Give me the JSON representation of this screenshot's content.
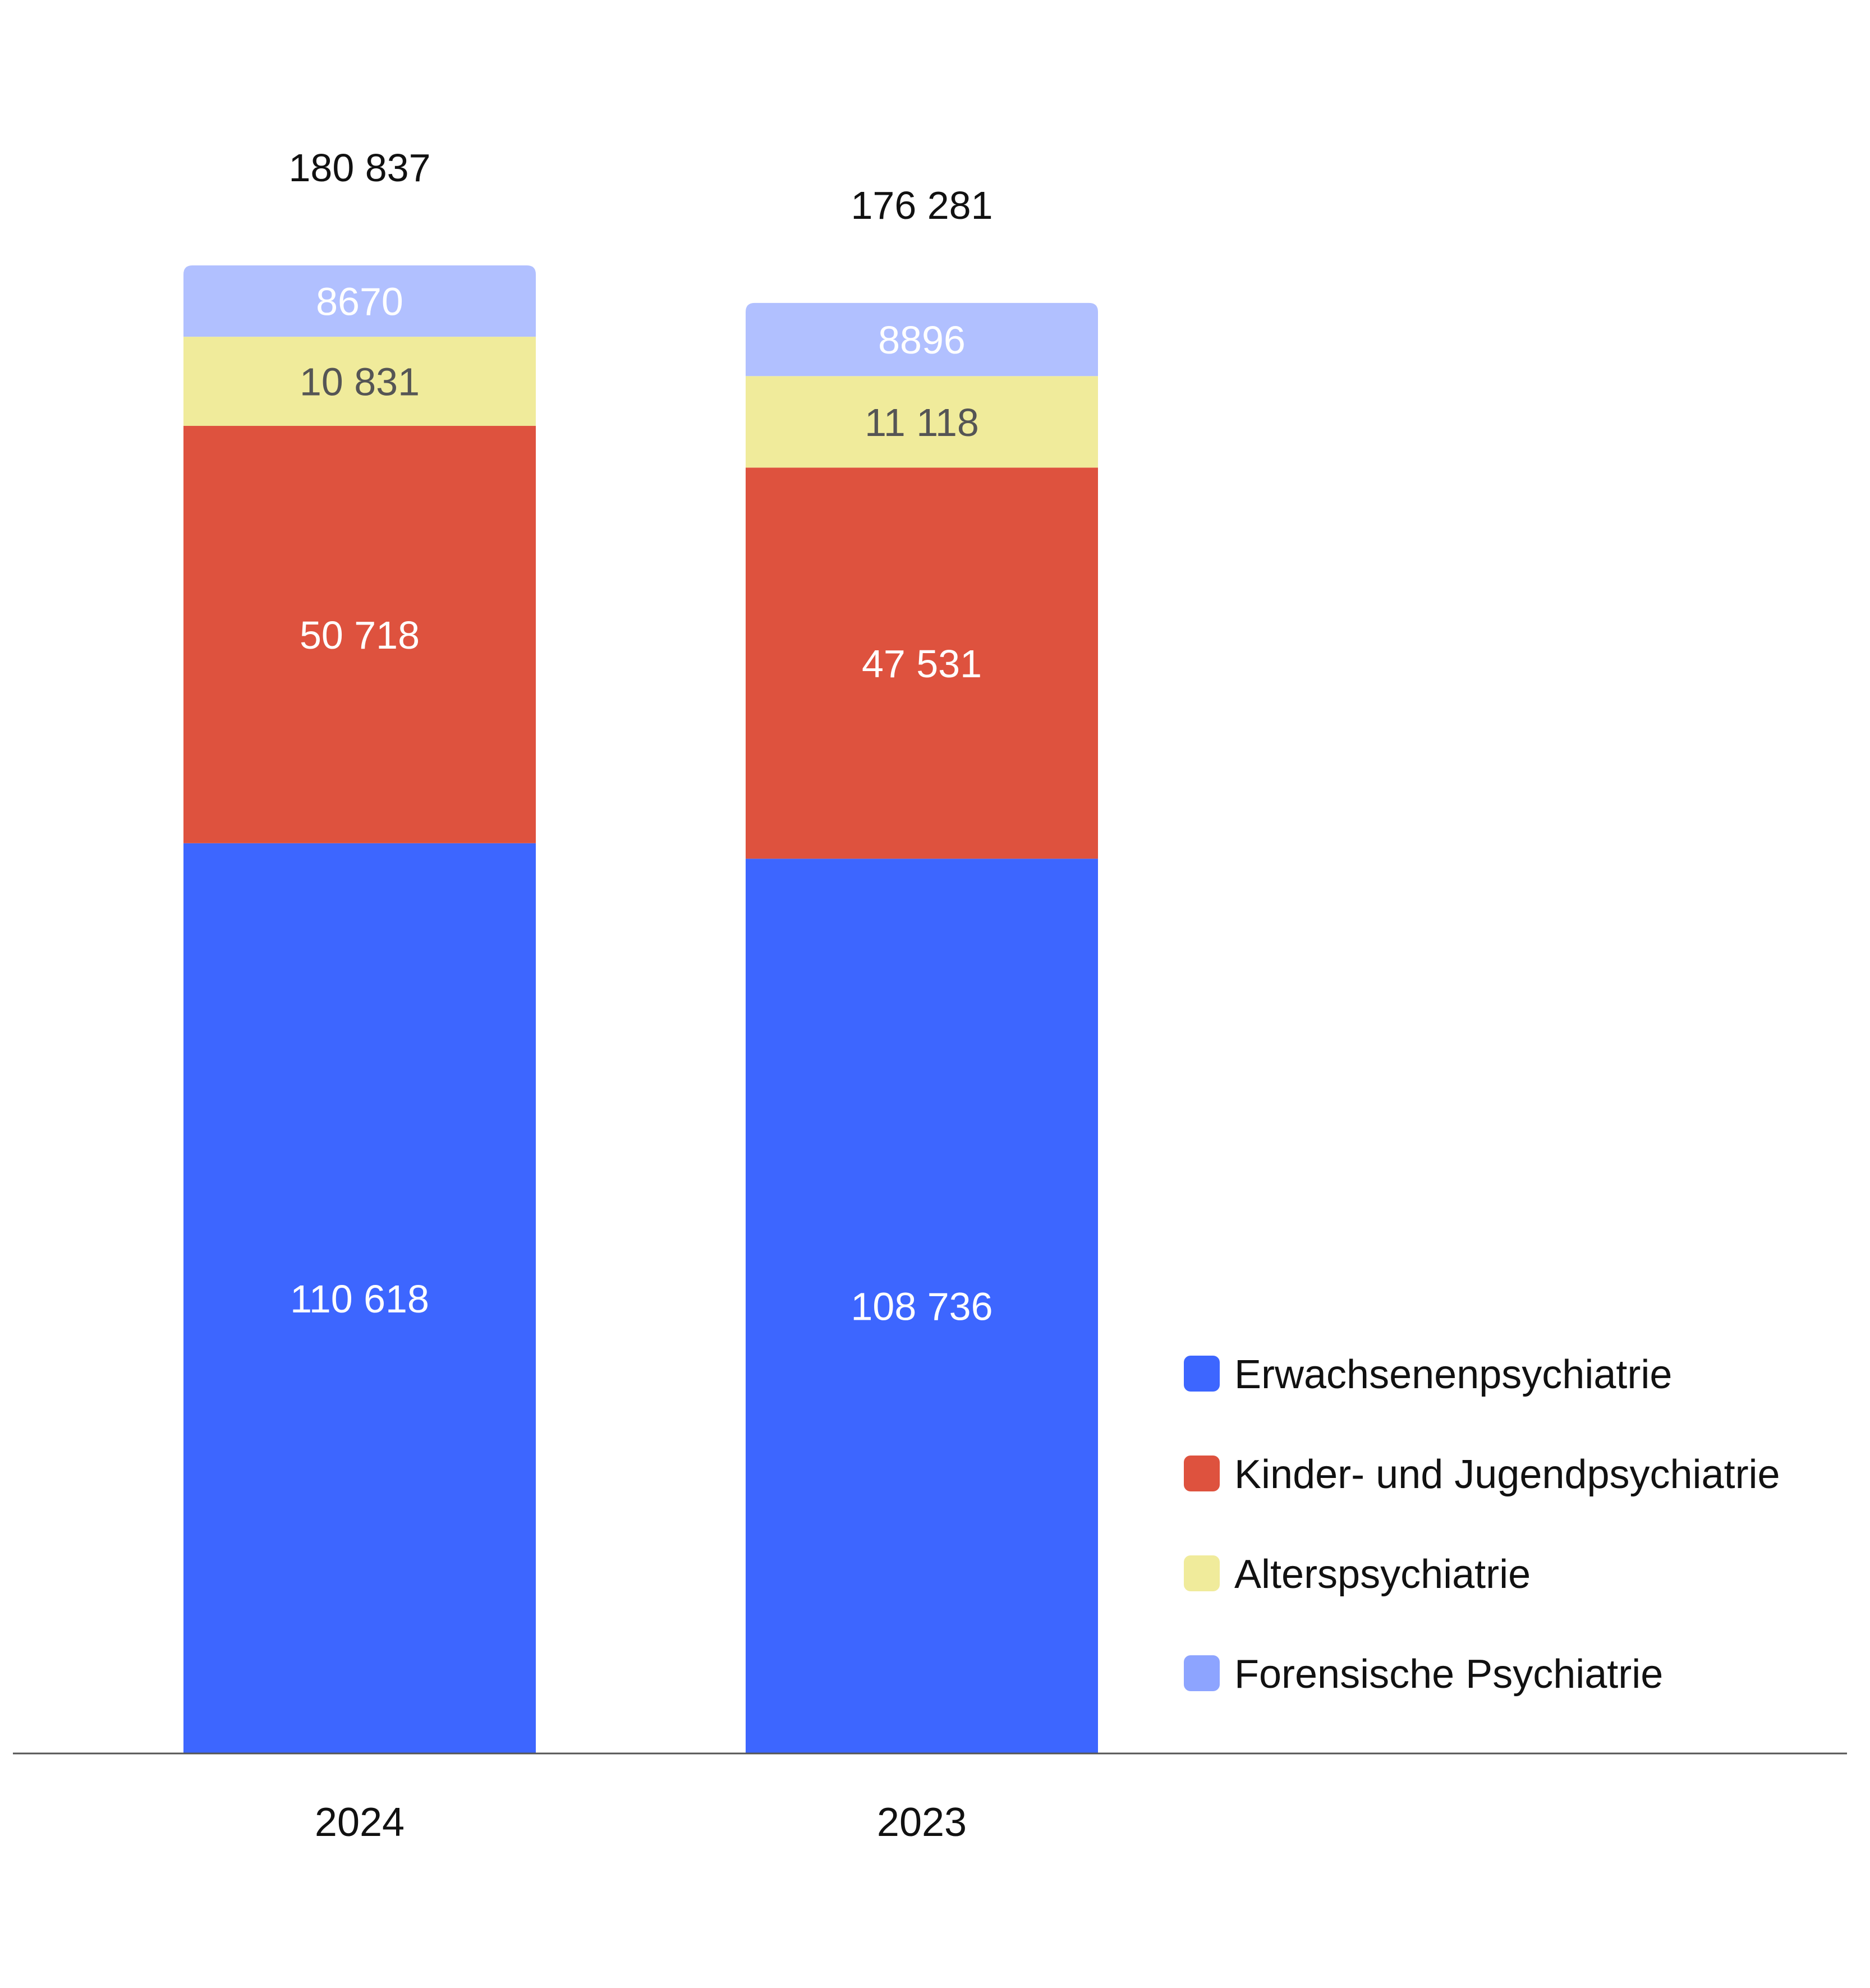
{
  "chart_data": {
    "type": "bar",
    "stacked": true,
    "categories": [
      "2024",
      "2023"
    ],
    "totals": [
      "180 837",
      "176 281"
    ],
    "total_values": [
      180837,
      176281
    ],
    "series": [
      {
        "name": "Erwachsenenpsychiatrie",
        "values": [
          110618,
          108736
        ],
        "labels": [
          "110 618",
          "108 736"
        ],
        "color": "#3d66ff",
        "label_color": "#ffffff"
      },
      {
        "name": "Kinder- und Jugendpsychiatrie",
        "values": [
          50718,
          47531
        ],
        "labels": [
          "50 718",
          "47 531"
        ],
        "color": "#de523e",
        "label_color": "#ffffff"
      },
      {
        "name": "Alterspsychiatrie",
        "values": [
          10831,
          11118
        ],
        "labels": [
          "10 831",
          "11 118"
        ],
        "color": "#f0eb9b",
        "label_color": "#555555"
      },
      {
        "name": "Forensische Psychiatrie",
        "values": [
          8670,
          8896
        ],
        "labels": [
          "8670",
          "8896"
        ],
        "color": "#b1c0ff",
        "label_color": "#ffffff"
      }
    ],
    "legend_placement": "bottom-right",
    "grid": false
  }
}
